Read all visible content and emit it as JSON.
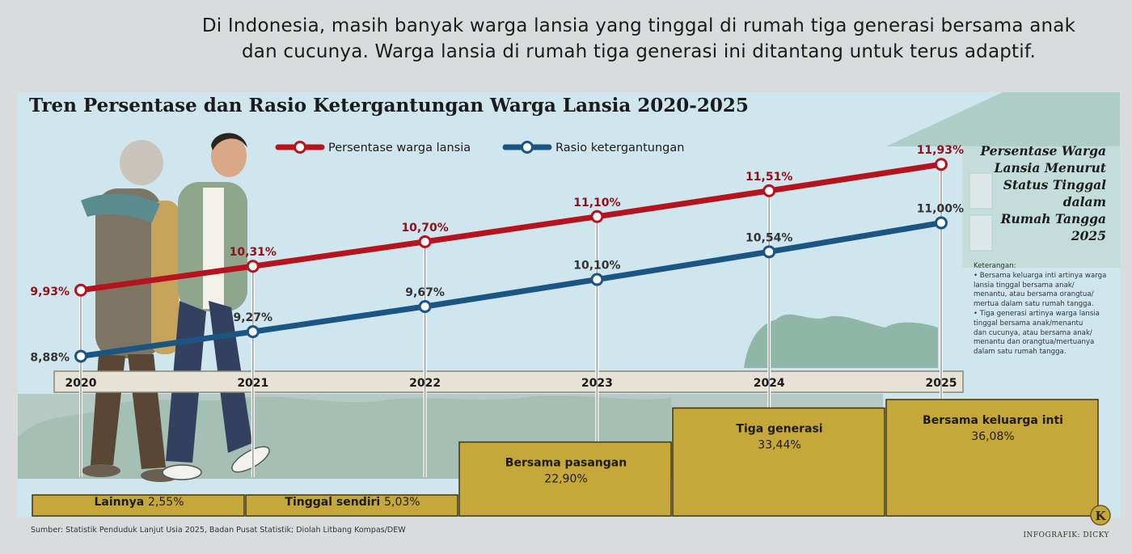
{
  "headline": {
    "line1": "Di Indonesia, masih banyak warga lansia yang tinggal di rumah tiga generasi bersama anak",
    "line2": "dan cucunya. Warga lansia di rumah tiga generasi ini ditantang untuk terus adaptif."
  },
  "colors": {
    "lansia": "#b5141f",
    "rasio": "#1a5584",
    "bar_fill": "#c6a83a",
    "bar_border": "#3f3510",
    "sky": "#cfe6ee",
    "grass": "#9cbdb0"
  },
  "chart_data": [
    {
      "type": "line",
      "title": "Tren Persentase dan Rasio Ketergantungan Warga Lansia 2020-2025",
      "x": [
        "2020",
        "2021",
        "2022",
        "2023",
        "2024",
        "2025"
      ],
      "series": [
        {
          "name": "Persentase warga lansia",
          "values": [
            9.93,
            10.31,
            10.7,
            11.1,
            11.51,
            11.93
          ],
          "labels": [
            "9,93%",
            "10,31%",
            "10,70%",
            "11,10%",
            "11,51%",
            "11,93%"
          ]
        },
        {
          "name": "Rasio ketergantungan",
          "values": [
            8.88,
            9.27,
            9.67,
            10.1,
            10.54,
            11.0
          ],
          "labels": [
            "8,88%",
            "9,27%",
            "9,67%",
            "10,10%",
            "10,54%",
            "11,00%"
          ]
        }
      ],
      "ylim": [
        8.5,
        12.1
      ],
      "grid": false,
      "legend_position": "top"
    },
    {
      "type": "bar",
      "title": "Persentase Warga Lansia Menurut Status Tinggal dalam Rumah Tangga 2025",
      "categories": [
        "Lainnya",
        "Tinggal sendiri",
        "Bersama pasangan",
        "Tiga generasi",
        "Bersama keluarga inti"
      ],
      "values": [
        2.55,
        5.03,
        22.9,
        33.44,
        36.08
      ],
      "labels": [
        "2,55%",
        "5,03%",
        "22,90%",
        "33,44%",
        "36,08%"
      ],
      "ylim": [
        0,
        36.08
      ]
    }
  ],
  "side_title_lines": [
    "Persentase Warga",
    "Lansia Menurut",
    "Status Tinggal",
    "dalam",
    "Rumah Tangga",
    "2025"
  ],
  "notes": {
    "heading": "Keterangan:",
    "lines": [
      "• Bersama keluarga inti artinya warga",
      "lansia tinggal bersama anak/",
      "menantu, atau bersama orangtua/",
      "mertua dalam satu rumah tangga.",
      "• Tiga generasi artinya warga lansia",
      "tinggal bersama anak/menantu",
      "dan cucunya, atau bersama anak/",
      "menantu dan orangtua/mertuanya",
      "dalam satu rumah tangga."
    ]
  },
  "source": "Sumber: Statistik Penduduk Lanjut Usia 2025, Badan Pusat Statistik; Diolah Litbang Kompas/DEW",
  "credit": "INFOGRAFIK: DICKY",
  "logo_letter": "K"
}
